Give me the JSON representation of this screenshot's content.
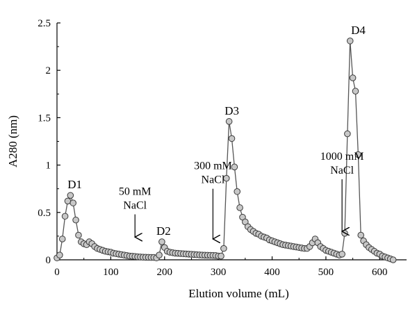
{
  "chart_data": {
    "type": "scatter",
    "title": "",
    "xlabel": "Elution volume (mL)",
    "ylabel": "A280 (nm)",
    "xlim": [
      0,
      650
    ],
    "ylim": [
      0,
      2.5
    ],
    "x_ticks": [
      0,
      100,
      200,
      300,
      400,
      500,
      600
    ],
    "x_tick_labels": [
      "0",
      "100",
      "200",
      "300",
      "400",
      "500",
      "600"
    ],
    "y_ticks": [
      0,
      0.5,
      1,
      1.5,
      2,
      2.5
    ],
    "y_tick_labels": [
      "0",
      "0.5",
      "1",
      "1.5",
      "2",
      "2.5"
    ],
    "grid": false,
    "marker": "circle",
    "marker_color": "#c8c8c8",
    "line_color": "#555555",
    "series": [
      {
        "x": [
          0,
          5,
          10,
          15,
          20,
          25,
          30,
          35,
          40,
          45,
          50,
          55,
          60,
          65,
          70,
          75,
          80,
          85,
          90,
          95,
          100,
          105,
          110,
          115,
          120,
          125,
          130,
          135,
          140,
          145,
          150,
          155,
          160,
          165,
          170,
          175,
          180,
          185,
          190,
          195,
          200,
          205,
          210,
          215,
          220,
          225,
          230,
          235,
          240,
          245,
          250,
          255,
          260,
          265,
          270,
          275,
          280,
          285,
          290,
          295,
          300,
          305,
          310,
          315,
          320,
          325,
          330,
          335,
          340,
          345,
          350,
          355,
          360,
          365,
          370,
          375,
          380,
          385,
          390,
          395,
          400,
          405,
          410,
          415,
          420,
          425,
          430,
          435,
          440,
          445,
          450,
          455,
          460,
          465,
          470,
          475,
          480,
          485,
          490,
          495,
          500,
          505,
          510,
          515,
          520,
          525,
          530,
          535,
          540,
          545,
          550,
          555,
          560,
          565,
          570,
          575,
          580,
          585,
          590,
          595,
          600,
          605,
          610,
          615,
          620,
          625
        ],
        "y": [
          0.02,
          0.05,
          0.22,
          0.46,
          0.62,
          0.68,
          0.6,
          0.42,
          0.26,
          0.19,
          0.17,
          0.16,
          0.19,
          0.17,
          0.14,
          0.12,
          0.11,
          0.1,
          0.09,
          0.085,
          0.08,
          0.07,
          0.065,
          0.06,
          0.055,
          0.05,
          0.045,
          0.04,
          0.038,
          0.035,
          0.032,
          0.03,
          0.028,
          0.027,
          0.026,
          0.025,
          0.025,
          0.02,
          0.05,
          0.19,
          0.13,
          0.09,
          0.08,
          0.075,
          0.07,
          0.068,
          0.066,
          0.064,
          0.062,
          0.06,
          0.058,
          0.056,
          0.054,
          0.052,
          0.05,
          0.049,
          0.048,
          0.047,
          0.046,
          0.045,
          0.04,
          0.04,
          0.12,
          0.86,
          1.46,
          1.28,
          0.98,
          0.72,
          0.55,
          0.45,
          0.4,
          0.35,
          0.32,
          0.3,
          0.28,
          0.27,
          0.25,
          0.24,
          0.23,
          0.21,
          0.2,
          0.19,
          0.18,
          0.17,
          0.16,
          0.155,
          0.15,
          0.145,
          0.14,
          0.135,
          0.13,
          0.125,
          0.12,
          0.12,
          0.14,
          0.18,
          0.22,
          0.18,
          0.14,
          0.12,
          0.1,
          0.09,
          0.08,
          0.07,
          0.06,
          0.05,
          0.06,
          0.28,
          1.33,
          2.31,
          1.92,
          1.78,
          1.11,
          0.26,
          0.2,
          0.16,
          0.13,
          0.11,
          0.09,
          0.07,
          0.06,
          0.04,
          0.03,
          0.02,
          0.01,
          0.0
        ]
      }
    ],
    "peak_labels": [
      {
        "text": "D1",
        "x": 28,
        "y": 0.68
      },
      {
        "text": "D2",
        "x": 193,
        "y": 0.19
      },
      {
        "text": "D3",
        "x": 320,
        "y": 1.46
      },
      {
        "text": "D4",
        "x": 555,
        "y": 2.31
      }
    ],
    "annotations": [
      {
        "lines": [
          "50 mM",
          "NaCl"
        ],
        "arrow_x": 145,
        "arrow_from": 0.48,
        "arrow_to": 0.24
      },
      {
        "lines": [
          "300 mM",
          "NaCl"
        ],
        "arrow_x": 290,
        "arrow_from": 0.75,
        "arrow_to": 0.22
      },
      {
        "lines": [
          "1000 mM",
          "NaCl"
        ],
        "arrow_x": 530,
        "arrow_from": 0.85,
        "arrow_to": 0.3
      }
    ]
  }
}
